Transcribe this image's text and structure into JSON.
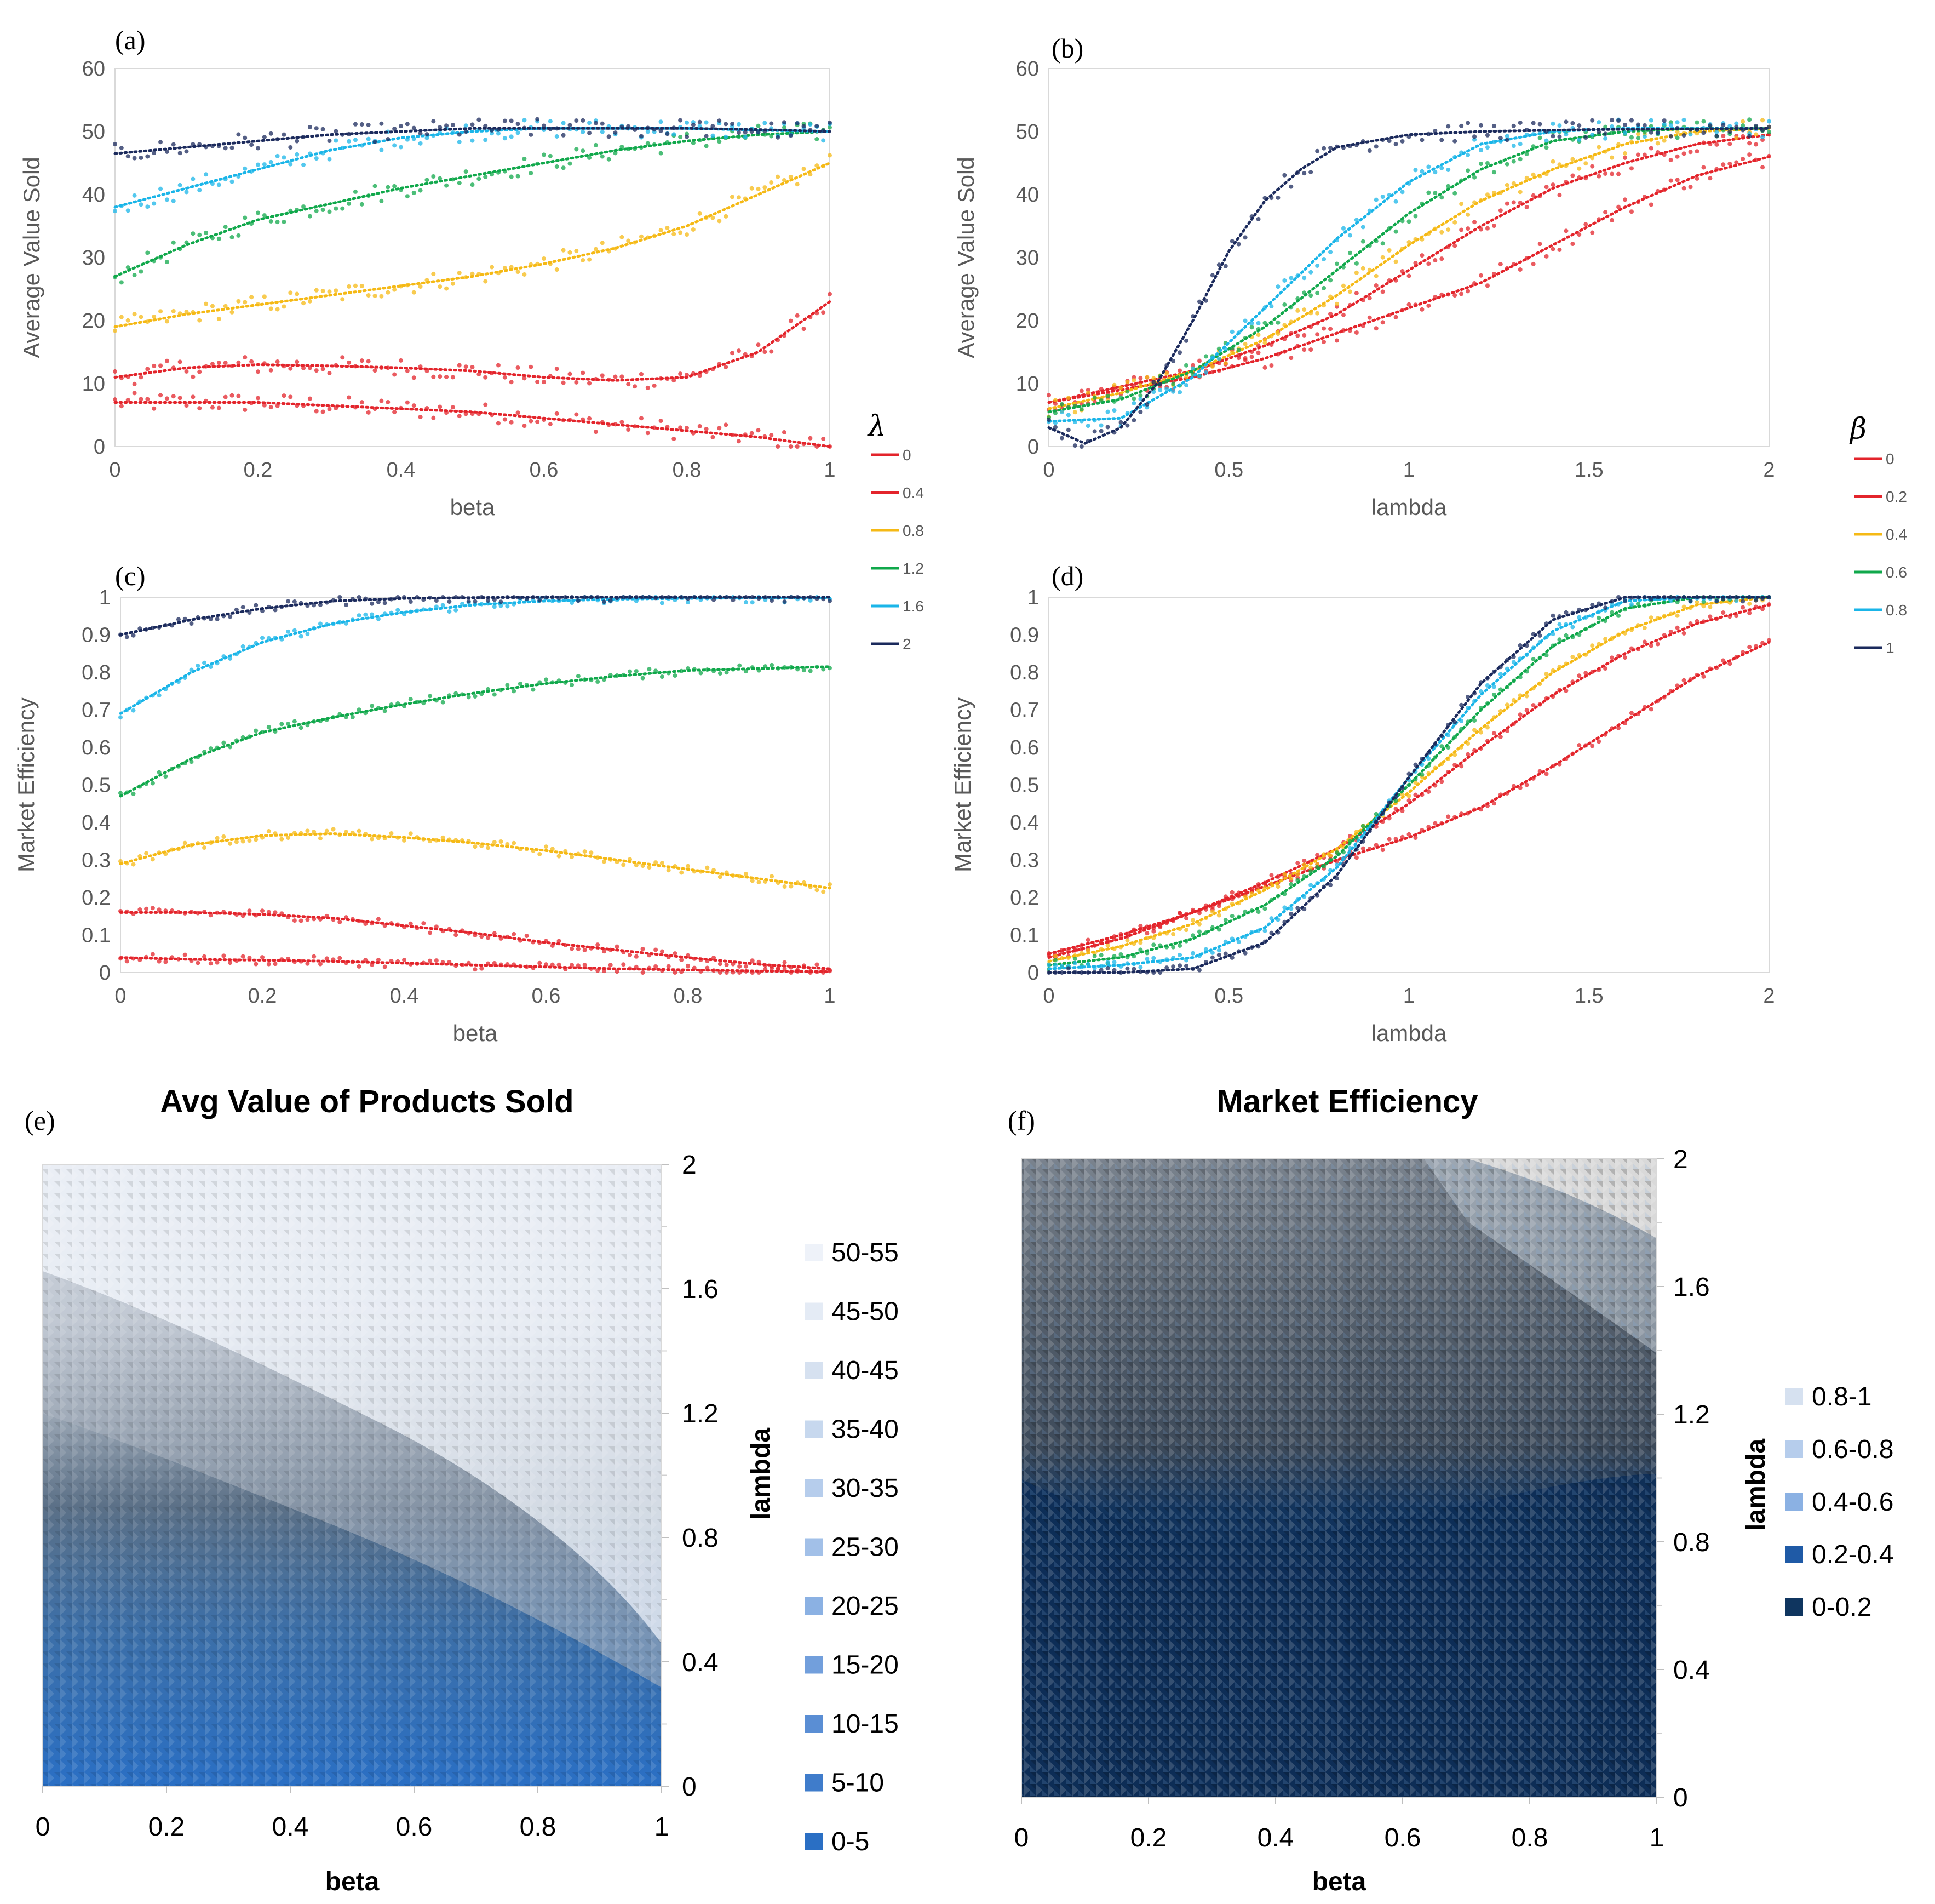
{
  "chart_data": [
    {
      "panel": "(a)",
      "type": "scatter",
      "xlabel": "beta",
      "ylabel": "Average Value Sold",
      "xlim": [
        0,
        1
      ],
      "ylim": [
        0,
        60
      ],
      "xticks": [
        "0",
        "0.2",
        "0.4",
        "0.6",
        "0.8",
        "1"
      ],
      "yticks": [
        "0",
        "10",
        "20",
        "30",
        "40",
        "50",
        "60"
      ],
      "legend_title": "λ",
      "legend_placement": "right",
      "series": [
        {
          "name": "0",
          "color": "#e3242b",
          "x": [
            0,
            0.1,
            0.2,
            0.3,
            0.4,
            0.5,
            0.6,
            0.7,
            0.8,
            0.9,
            1.0
          ],
          "y": [
            7,
            7,
            7,
            6.5,
            6,
            5.5,
            4.5,
            3.5,
            2.5,
            1.5,
            0
          ]
        },
        {
          "name": "0.4",
          "color": "#e3242b",
          "x": [
            0,
            0.1,
            0.2,
            0.3,
            0.4,
            0.5,
            0.6,
            0.7,
            0.8,
            0.9,
            1.0
          ],
          "y": [
            11,
            12.5,
            13,
            12.8,
            12.5,
            12,
            11,
            10.5,
            11,
            15,
            23
          ]
        },
        {
          "name": "0.8",
          "color": "#f5b915",
          "x": [
            0,
            0.1,
            0.2,
            0.3,
            0.4,
            0.5,
            0.6,
            0.7,
            0.8,
            0.9,
            1.0
          ],
          "y": [
            19,
            21,
            22.5,
            24,
            25.5,
            27,
            29,
            31.5,
            35,
            40,
            45
          ]
        },
        {
          "name": "1.2",
          "color": "#10a84b",
          "x": [
            0,
            0.1,
            0.2,
            0.3,
            0.4,
            0.5,
            0.6,
            0.7,
            0.8,
            0.9,
            1.0
          ],
          "y": [
            27,
            32,
            36,
            38.5,
            41,
            43,
            45,
            47,
            48.5,
            49.5,
            50
          ]
        },
        {
          "name": "1.6",
          "color": "#1ab5e8",
          "x": [
            0,
            0.1,
            0.2,
            0.3,
            0.4,
            0.5,
            0.6,
            0.7,
            0.8,
            0.9,
            1.0
          ],
          "y": [
            38,
            41,
            44,
            47,
            49,
            50,
            50.5,
            50.5,
            50.5,
            50.2,
            50
          ]
        },
        {
          "name": "2",
          "color": "#1b2a5c",
          "x": [
            0,
            0.1,
            0.2,
            0.3,
            0.4,
            0.5,
            0.6,
            0.7,
            0.8,
            0.9,
            1.0
          ],
          "y": [
            46.5,
            47.5,
            48.5,
            49.5,
            50,
            50.5,
            50.5,
            50.5,
            50.5,
            50.3,
            50
          ]
        }
      ]
    },
    {
      "panel": "(b)",
      "type": "scatter",
      "xlabel": "lambda",
      "ylabel": "Average Value Sold",
      "xlim": [
        0,
        2
      ],
      "ylim": [
        0,
        60
      ],
      "xticks": [
        "0",
        "0.5",
        "1",
        "1.5",
        "2"
      ],
      "yticks": [
        "0",
        "10",
        "20",
        "30",
        "40",
        "50",
        "60"
      ],
      "legend_title": "β",
      "legend_placement": "right",
      "series": [
        {
          "name": "0",
          "color": "#e3242b",
          "x": [
            0,
            0.2,
            0.4,
            0.6,
            0.8,
            1.0,
            1.2,
            1.4,
            1.6,
            1.8,
            2.0
          ],
          "y": [
            7,
            9,
            11,
            14,
            18,
            22,
            26,
            32,
            38,
            43,
            46
          ]
        },
        {
          "name": "0.2",
          "color": "#e3242b",
          "x": [
            0,
            0.2,
            0.4,
            0.6,
            0.8,
            1.0,
            1.2,
            1.4,
            1.6,
            1.8,
            2.0
          ],
          "y": [
            7,
            9.5,
            12,
            16,
            21,
            28,
            35,
            41,
            45,
            48,
            49.5
          ]
        },
        {
          "name": "0.4",
          "color": "#f5b915",
          "x": [
            0,
            0.2,
            0.4,
            0.6,
            0.8,
            1.0,
            1.2,
            1.4,
            1.6,
            1.8,
            2.0
          ],
          "y": [
            6,
            8.5,
            12,
            17,
            24,
            32,
            39,
            44,
            48,
            50,
            50.5
          ]
        },
        {
          "name": "0.6",
          "color": "#10a84b",
          "x": [
            0,
            0.2,
            0.4,
            0.6,
            0.8,
            1.0,
            1.2,
            1.4,
            1.6,
            1.8,
            2.0
          ],
          "y": [
            5.5,
            7.5,
            12,
            19,
            28,
            37,
            44,
            48.5,
            50,
            50.5,
            50.5
          ]
        },
        {
          "name": "0.8",
          "color": "#1ab5e8",
          "x": [
            0,
            0.2,
            0.4,
            0.6,
            0.8,
            1.0,
            1.2,
            1.4,
            1.6,
            1.8,
            2.0
          ],
          "y": [
            4,
            4.5,
            11,
            22,
            33,
            42,
            48,
            50,
            50.5,
            50.5,
            50.5
          ]
        },
        {
          "name": "1",
          "color": "#1b2a5c",
          "x": [
            0,
            0.1,
            0.2,
            0.3,
            0.4,
            0.5,
            0.6,
            0.7,
            0.8,
            1.0,
            1.2,
            1.5,
            2.0
          ],
          "y": [
            3,
            0.5,
            3,
            10,
            20,
            31,
            39,
            44,
            47.5,
            49.5,
            50,
            50.3,
            50.5
          ]
        }
      ]
    },
    {
      "panel": "(c)",
      "type": "scatter",
      "xlabel": "beta",
      "ylabel": "Market Efficiency",
      "xlim": [
        0,
        1
      ],
      "ylim": [
        0,
        1
      ],
      "xticks": [
        "0",
        "0.2",
        "0.4",
        "0.6",
        "0.8",
        "1"
      ],
      "yticks": [
        "0",
        "0.1",
        "0.2",
        "0.3",
        "0.4",
        "0.5",
        "0.6",
        "0.7",
        "0.8",
        "0.9",
        "1"
      ],
      "series": [
        {
          "name": "0",
          "color": "#e3242b",
          "x": [
            0,
            0.1,
            0.2,
            0.3,
            0.4,
            0.5,
            0.6,
            0.7,
            0.8,
            0.9,
            1.0
          ],
          "y": [
            0.04,
            0.035,
            0.033,
            0.03,
            0.025,
            0.02,
            0.015,
            0.01,
            0.007,
            0.004,
            0.002
          ]
        },
        {
          "name": "0.4",
          "color": "#e3242b",
          "x": [
            0,
            0.1,
            0.2,
            0.3,
            0.4,
            0.5,
            0.6,
            0.7,
            0.8,
            0.9,
            1.0
          ],
          "y": [
            0.16,
            0.16,
            0.155,
            0.145,
            0.125,
            0.105,
            0.08,
            0.06,
            0.04,
            0.022,
            0.01
          ]
        },
        {
          "name": "0.8",
          "color": "#f5b915",
          "x": [
            0,
            0.1,
            0.2,
            0.3,
            0.4,
            0.5,
            0.6,
            0.7,
            0.8,
            0.9,
            1.0
          ],
          "y": [
            0.29,
            0.34,
            0.365,
            0.37,
            0.36,
            0.345,
            0.325,
            0.3,
            0.275,
            0.25,
            0.225
          ]
        },
        {
          "name": "1.2",
          "color": "#10a84b",
          "x": [
            0,
            0.1,
            0.2,
            0.3,
            0.4,
            0.5,
            0.6,
            0.7,
            0.8,
            0.9,
            1.0
          ],
          "y": [
            0.47,
            0.57,
            0.64,
            0.68,
            0.715,
            0.745,
            0.77,
            0.79,
            0.805,
            0.81,
            0.815
          ]
        },
        {
          "name": "1.6",
          "color": "#1ab5e8",
          "x": [
            0,
            0.1,
            0.2,
            0.3,
            0.4,
            0.5,
            0.6,
            0.7,
            0.8,
            0.9,
            1.0
          ],
          "y": [
            0.69,
            0.8,
            0.88,
            0.93,
            0.96,
            0.98,
            0.99,
            0.995,
            0.997,
            0.998,
            0.998
          ]
        },
        {
          "name": "2",
          "color": "#1b2a5c",
          "x": [
            0,
            0.1,
            0.2,
            0.3,
            0.4,
            0.5,
            0.6,
            0.7,
            0.8,
            0.9,
            1.0
          ],
          "y": [
            0.9,
            0.94,
            0.97,
            0.99,
            0.997,
            0.999,
            1.0,
            1.0,
            1.0,
            1.0,
            1.0
          ]
        }
      ]
    },
    {
      "panel": "(d)",
      "type": "scatter",
      "xlabel": "lambda",
      "ylabel": "Market Efficiency",
      "xlim": [
        0,
        2
      ],
      "ylim": [
        0,
        1
      ],
      "xticks": [
        "0",
        "0.5",
        "1",
        "1.5",
        "2"
      ],
      "yticks": [
        "0",
        "0.1",
        "0.2",
        "0.3",
        "0.4",
        "0.5",
        "0.6",
        "0.7",
        "0.8",
        "0.9",
        "1"
      ],
      "series": [
        {
          "name": "0",
          "color": "#e3242b",
          "x": [
            0,
            0.2,
            0.4,
            0.6,
            0.8,
            1.0,
            1.2,
            1.4,
            1.6,
            1.8,
            2.0
          ],
          "y": [
            0.05,
            0.1,
            0.16,
            0.23,
            0.3,
            0.36,
            0.44,
            0.55,
            0.67,
            0.79,
            0.88
          ]
        },
        {
          "name": "0.2",
          "color": "#e3242b",
          "x": [
            0,
            0.2,
            0.4,
            0.6,
            0.8,
            1.0,
            1.2,
            1.4,
            1.6,
            1.8,
            2.0
          ],
          "y": [
            0.04,
            0.09,
            0.16,
            0.24,
            0.33,
            0.45,
            0.6,
            0.74,
            0.85,
            0.93,
            0.98
          ]
        },
        {
          "name": "0.4",
          "color": "#f5b915",
          "x": [
            0,
            0.2,
            0.4,
            0.6,
            0.8,
            1.0,
            1.2,
            1.4,
            1.6,
            1.8,
            2.0
          ],
          "y": [
            0.03,
            0.07,
            0.13,
            0.22,
            0.33,
            0.48,
            0.65,
            0.8,
            0.91,
            0.98,
            1.0
          ]
        },
        {
          "name": "0.6",
          "color": "#10a84b",
          "x": [
            0,
            0.2,
            0.4,
            0.6,
            0.8,
            1.0,
            1.2,
            1.4,
            1.6,
            1.8,
            2.0
          ],
          "y": [
            0.02,
            0.04,
            0.09,
            0.18,
            0.31,
            0.5,
            0.7,
            0.87,
            0.97,
            1.0,
            1.0
          ]
        },
        {
          "name": "0.8",
          "color": "#1ab5e8",
          "x": [
            0,
            0.2,
            0.4,
            0.6,
            0.8,
            1.0,
            1.2,
            1.4,
            1.6,
            1.8,
            2.0
          ],
          "y": [
            0.01,
            0.02,
            0.04,
            0.12,
            0.28,
            0.52,
            0.74,
            0.91,
            0.99,
            1.0,
            1.0
          ]
        },
        {
          "name": "1",
          "color": "#1b2a5c",
          "x": [
            0,
            0.2,
            0.4,
            0.6,
            0.8,
            1.0,
            1.2,
            1.4,
            1.6,
            1.8,
            2.0
          ],
          "y": [
            0.0,
            0.0,
            0.01,
            0.08,
            0.26,
            0.52,
            0.77,
            0.94,
            1.0,
            1.0,
            1.0
          ]
        }
      ]
    },
    {
      "panel": "(e)",
      "type": "heatmap",
      "title": "Avg Value of Products Sold",
      "xlabel": "beta",
      "ylabel": "lambda",
      "xlim": [
        0,
        1
      ],
      "ylim": [
        0,
        2
      ],
      "xticks": [
        "0",
        "0.2",
        "0.4",
        "0.6",
        "0.8",
        "1"
      ],
      "yticks": [
        "0",
        "0.4",
        "0.8",
        "1.2",
        "1.6",
        "2"
      ],
      "legend": [
        {
          "label": "50-55",
          "color": "#eef2f9"
        },
        {
          "label": "45-50",
          "color": "#e4ebf5"
        },
        {
          "label": "40-45",
          "color": "#d6e1f0"
        },
        {
          "label": "35-40",
          "color": "#c7d8ee"
        },
        {
          "label": "30-35",
          "color": "#b6cdec"
        },
        {
          "label": "25-30",
          "color": "#a2c0e8"
        },
        {
          "label": "20-25",
          "color": "#8bb1e3"
        },
        {
          "label": "15-20",
          "color": "#729fdc"
        },
        {
          "label": "10-15",
          "color": "#5a8ed4"
        },
        {
          "label": "5-10",
          "color": "#3f7ccb"
        },
        {
          "label": "0-5",
          "color": "#2a6fc4"
        }
      ]
    },
    {
      "panel": "(f)",
      "type": "heatmap",
      "title": "Market Efficiency",
      "xlabel": "beta",
      "ylabel": "lambda",
      "xlim": [
        0,
        1
      ],
      "ylim": [
        0,
        2
      ],
      "xticks": [
        "0",
        "0.2",
        "0.4",
        "0.6",
        "0.8",
        "1"
      ],
      "yticks": [
        "0",
        "0.4",
        "0.8",
        "1.2",
        "1.6",
        "2"
      ],
      "legend": [
        {
          "label": "0.8-1",
          "color": "#d6e1f0"
        },
        {
          "label": "0.6-0.8",
          "color": "#b6cdec"
        },
        {
          "label": "0.4-0.6",
          "color": "#8bb1e3"
        },
        {
          "label": "0.2-0.4",
          "color": "#1f5aa6"
        },
        {
          "label": "0-0.2",
          "color": "#0f355f"
        }
      ]
    }
  ]
}
